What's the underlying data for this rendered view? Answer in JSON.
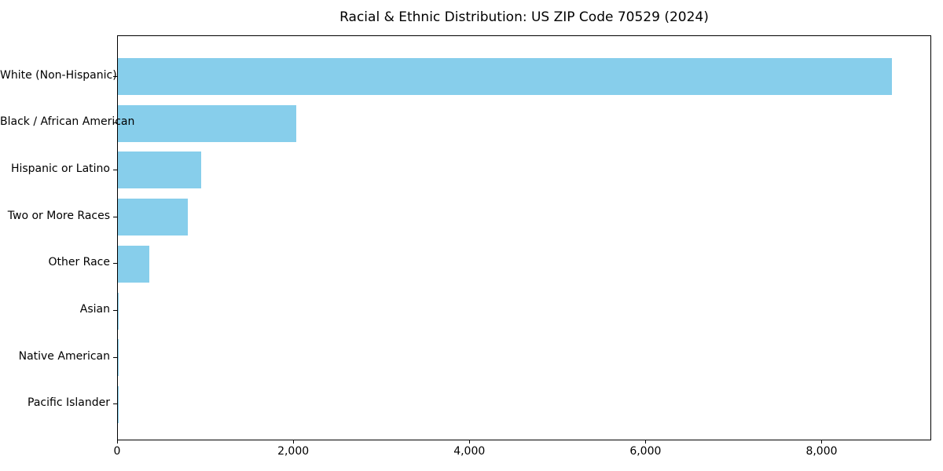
{
  "chart_data": {
    "type": "bar",
    "orientation": "horizontal",
    "title": "Racial & Ethnic Distribution: US ZIP Code 70529 (2024)",
    "categories": [
      "White (Non-Hispanic)",
      "Black / African American",
      "Hispanic or Latino",
      "Two or More Races",
      "Other Race",
      "Asian",
      "Native American",
      "Pacific Islander"
    ],
    "values": [
      8805,
      2034,
      945,
      792,
      356,
      13,
      7,
      2
    ],
    "xlabel": "",
    "ylabel": "",
    "xlim": [
      0,
      9245
    ],
    "x_ticks": [
      {
        "value": 0,
        "label": "0"
      },
      {
        "value": 2000,
        "label": "2,000"
      },
      {
        "value": 4000,
        "label": "4,000"
      },
      {
        "value": 6000,
        "label": "6,000"
      },
      {
        "value": 8000,
        "label": "8,000"
      }
    ],
    "grid": false,
    "legend": null,
    "colors": {
      "bar": "#87CEEB",
      "axis": "#000000",
      "text": "#000000",
      "background": "#ffffff"
    }
  }
}
